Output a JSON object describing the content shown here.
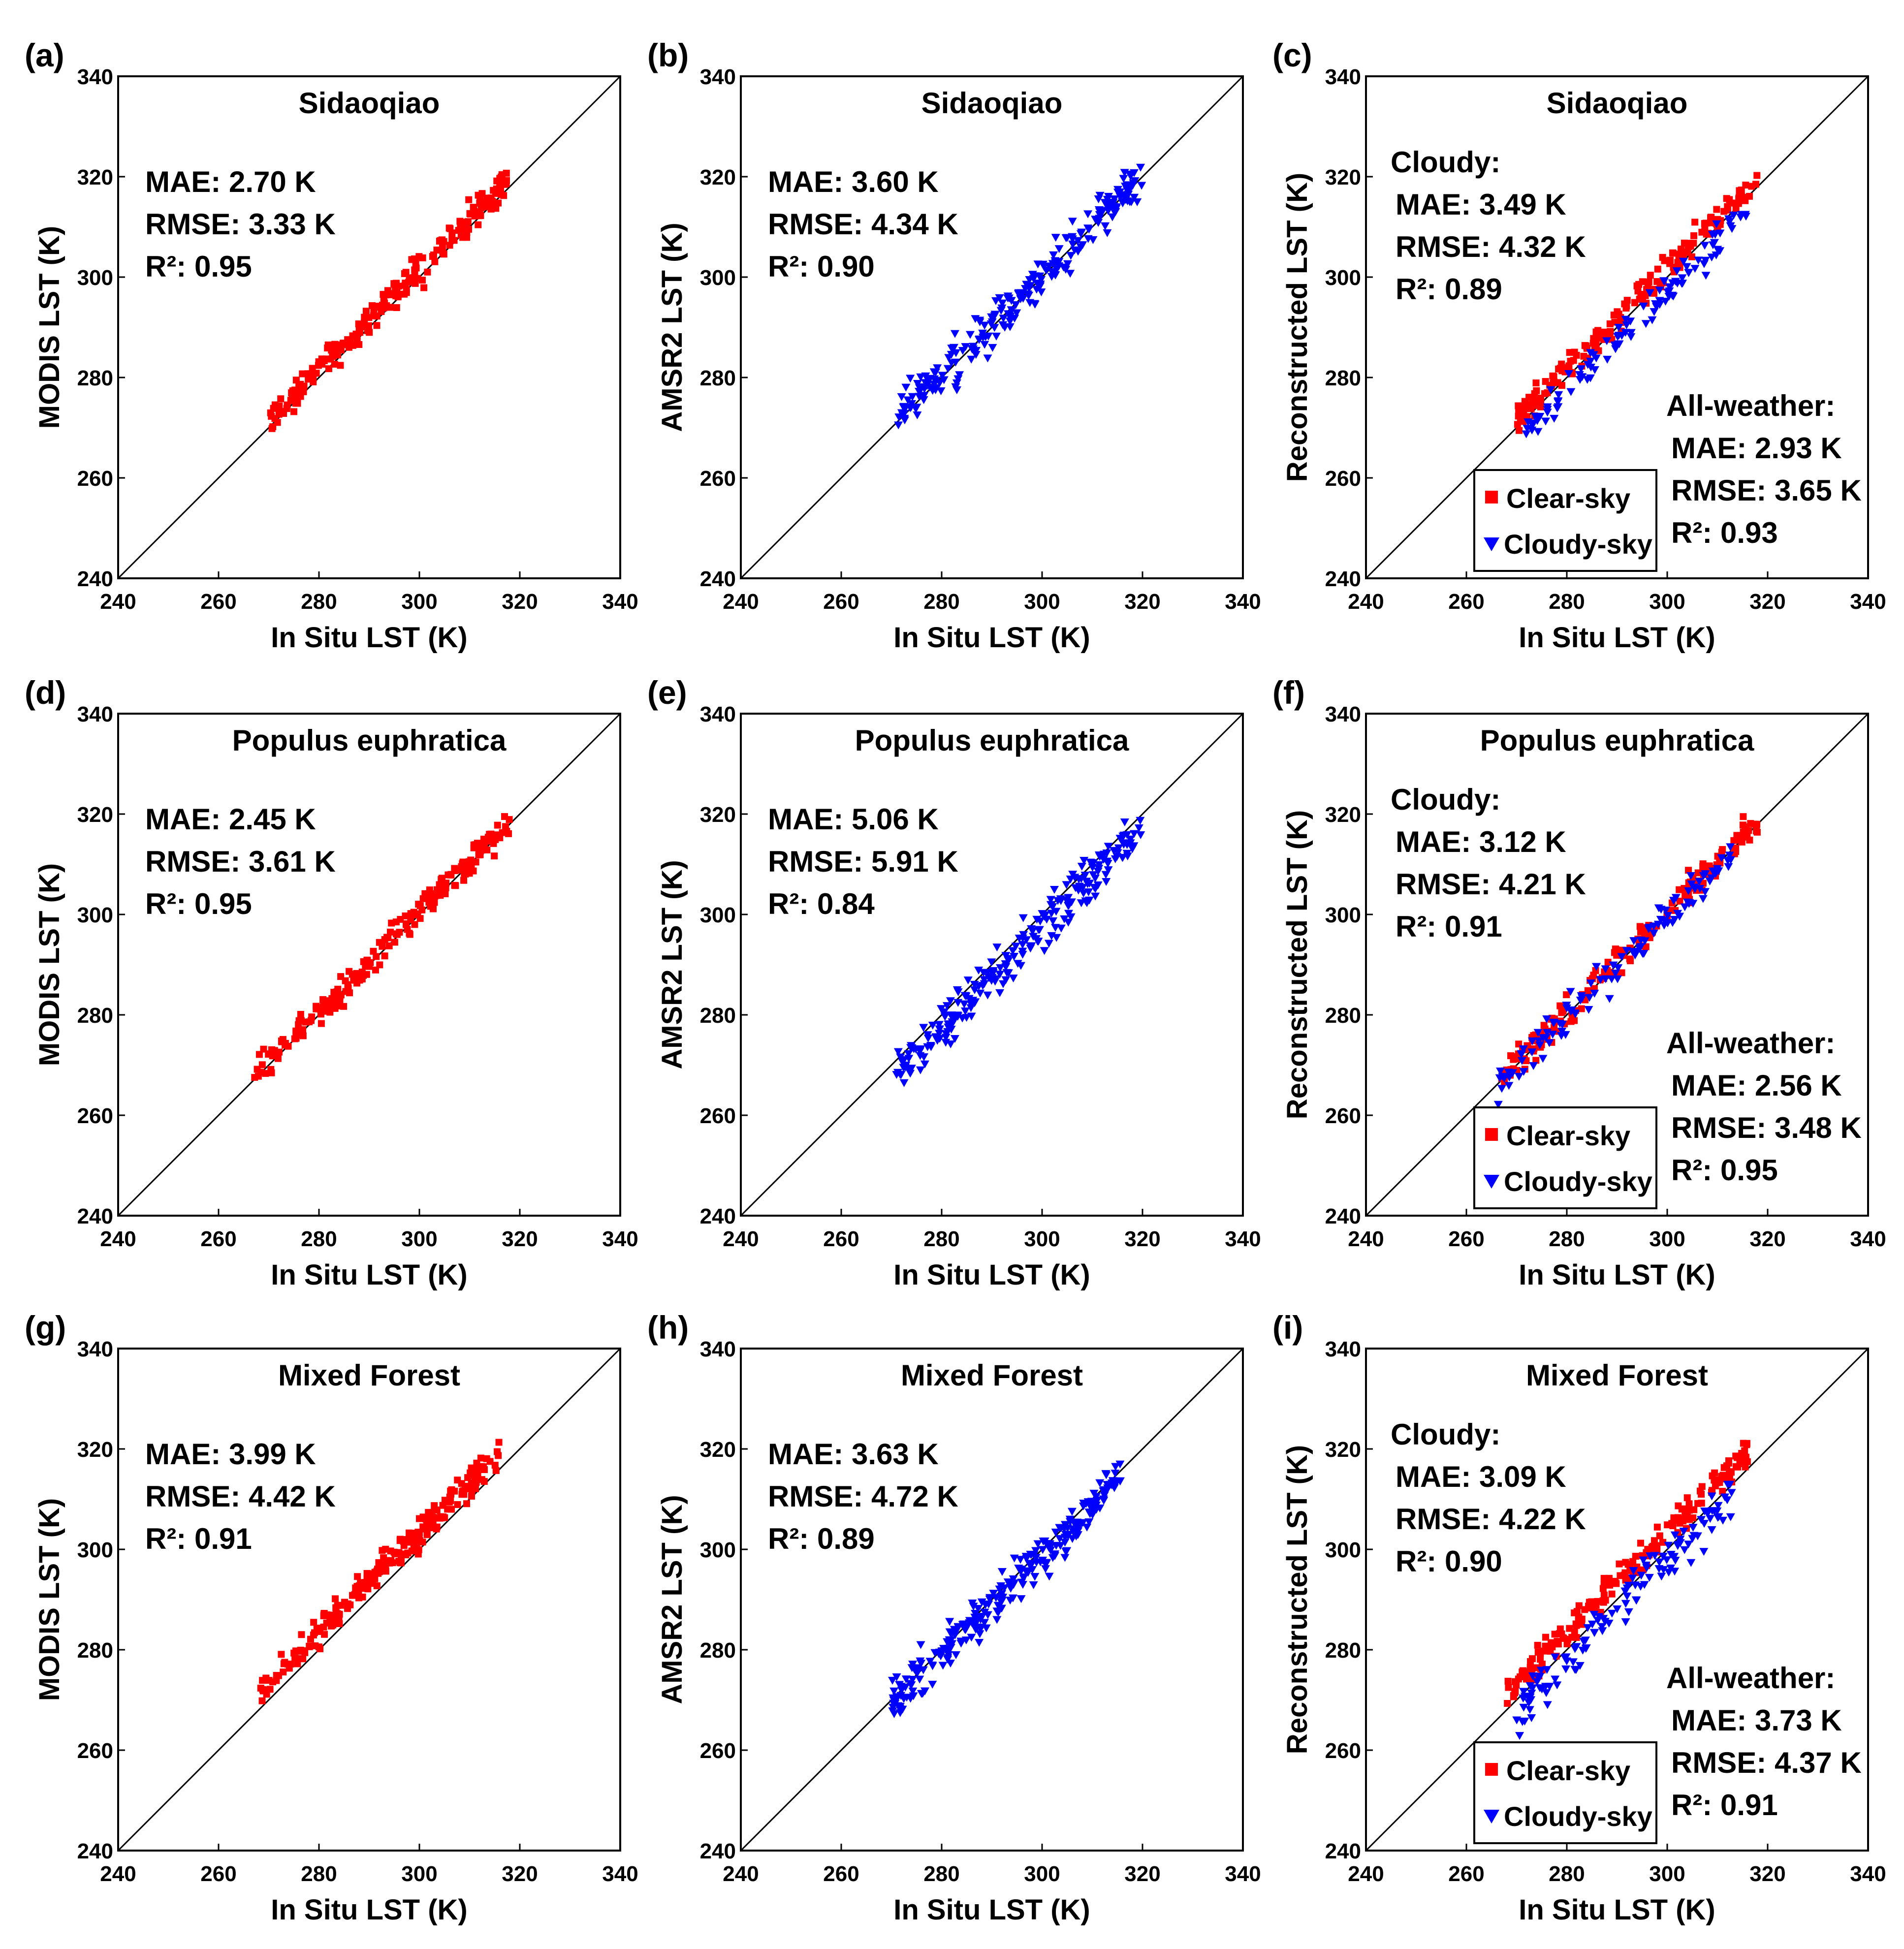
{
  "colors": {
    "clear_sky": "#ff0000",
    "cloudy_sky": "#0000ff",
    "axes": "#000000",
    "background": "#ffffff"
  },
  "chart_data": [
    {
      "panel": "(a)",
      "type": "scatter",
      "title": "Sidaoqiao",
      "xlabel": "In Situ LST (K)",
      "ylabel": "MODIS LST (K)",
      "xlim": [
        240,
        340
      ],
      "ylim": [
        240,
        340
      ],
      "ticks": [
        240,
        260,
        280,
        300,
        320,
        340
      ],
      "reference_line": "1:1",
      "series": [
        {
          "name": "Clear-sky",
          "marker": "square",
          "color": "#ff0000",
          "range": [
            270,
            318
          ],
          "bias": 1.5,
          "spread": 2.5,
          "n": 230
        }
      ],
      "stats_groups": [
        {
          "header": null,
          "lines": [
            "MAE: 2.70 K",
            "RMSE: 3.33 K",
            "R²: 0.95"
          ]
        }
      ],
      "legend": null
    },
    {
      "panel": "(b)",
      "type": "scatter",
      "title": "Sidaoqiao",
      "xlabel": "In Situ LST (K)",
      "ylabel": "AMSR2 LST (K)",
      "xlim": [
        240,
        340
      ],
      "ylim": [
        240,
        340
      ],
      "ticks": [
        240,
        260,
        280,
        300,
        320,
        340
      ],
      "reference_line": "1:1",
      "series": [
        {
          "name": "Cloudy-sky",
          "marker": "triangle-down",
          "color": "#0000ff",
          "range": [
            271,
            320
          ],
          "bias": 0.5,
          "spread": 3.5,
          "n": 250
        }
      ],
      "stats_groups": [
        {
          "header": null,
          "lines": [
            "MAE: 3.60 K",
            "RMSE: 4.34 K",
            "R²: 0.90"
          ]
        }
      ],
      "legend": null
    },
    {
      "panel": "(c)",
      "type": "scatter",
      "title": "Sidaoqiao",
      "xlabel": "In Situ LST (K)",
      "ylabel": "Reconstructed LST (K)",
      "xlim": [
        240,
        340
      ],
      "ylim": [
        240,
        340
      ],
      "ticks": [
        240,
        260,
        280,
        300,
        320,
        340
      ],
      "reference_line": "1:1",
      "series": [
        {
          "name": "Clear-sky",
          "marker": "square",
          "color": "#ff0000",
          "range": [
            270,
            318
          ],
          "bias": 1.5,
          "spread": 2.5,
          "n": 200
        },
        {
          "name": "Cloudy-sky",
          "marker": "triangle-down",
          "color": "#0000ff",
          "range": [
            271,
            316
          ],
          "bias": -2.5,
          "spread": 3.0,
          "n": 110
        }
      ],
      "stats_groups": [
        {
          "header": "Cloudy:",
          "lines": [
            "MAE: 3.49 K",
            "RMSE: 4.32 K",
            "R²: 0.89"
          ]
        },
        {
          "header": "All-weather:",
          "lines": [
            "MAE: 2.93 K",
            "RMSE: 3.65 K",
            "R²: 0.93"
          ]
        }
      ],
      "legend": [
        "Clear-sky",
        "Cloudy-sky"
      ]
    },
    {
      "panel": "(d)",
      "type": "scatter",
      "title": "Populus euphratica",
      "xlabel": "In Situ LST (K)",
      "ylabel": "MODIS LST (K)",
      "xlim": [
        240,
        340
      ],
      "ylim": [
        240,
        340
      ],
      "ticks": [
        240,
        260,
        280,
        300,
        320,
        340
      ],
      "reference_line": "1:1",
      "series": [
        {
          "name": "Clear-sky",
          "marker": "square",
          "color": "#ff0000",
          "range": [
            267,
            318
          ],
          "bias": 0.5,
          "spread": 2.5,
          "n": 230
        }
      ],
      "stats_groups": [
        {
          "header": null,
          "lines": [
            "MAE: 2.45 K",
            "RMSE: 3.61 K",
            "R²: 0.95"
          ]
        }
      ],
      "legend": null
    },
    {
      "panel": "(e)",
      "type": "scatter",
      "title": "Populus euphratica",
      "xlabel": "In Situ LST (K)",
      "ylabel": "AMSR2 LST (K)",
      "xlim": [
        240,
        340
      ],
      "ylim": [
        240,
        340
      ],
      "ticks": [
        240,
        260,
        280,
        300,
        320,
        340
      ],
      "reference_line": "1:1",
      "series": [
        {
          "name": "Cloudy-sky",
          "marker": "triangle-down",
          "color": "#0000ff",
          "range": [
            271,
            320
          ],
          "bias": -2.5,
          "spread": 3.5,
          "n": 250
        }
      ],
      "stats_groups": [
        {
          "header": null,
          "lines": [
            "MAE: 5.06 K",
            "RMSE: 5.91 K",
            "R²: 0.84"
          ]
        }
      ],
      "legend": null
    },
    {
      "panel": "(f)",
      "type": "scatter",
      "title": "Populus euphratica",
      "xlabel": "In Situ LST (K)",
      "ylabel": "Reconstructed LST (K)",
      "xlim": [
        240,
        340
      ],
      "ylim": [
        240,
        340
      ],
      "ticks": [
        240,
        260,
        280,
        300,
        320,
        340
      ],
      "reference_line": "1:1",
      "series": [
        {
          "name": "Clear-sky",
          "marker": "square",
          "color": "#ff0000",
          "range": [
            267,
            318
          ],
          "bias": 0.5,
          "spread": 2.5,
          "n": 190
        },
        {
          "name": "Cloudy-sky",
          "marker": "triangle-down",
          "color": "#0000ff",
          "range": [
            266,
            313
          ],
          "bias": -0.5,
          "spread": 3.0,
          "n": 120
        }
      ],
      "stats_groups": [
        {
          "header": "Cloudy:",
          "lines": [
            "MAE: 3.12 K",
            "RMSE: 4.21 K",
            "R²: 0.91"
          ]
        },
        {
          "header": "All-weather:",
          "lines": [
            "MAE: 2.56 K",
            "RMSE: 3.48 K",
            "R²: 0.95"
          ]
        }
      ],
      "legend": [
        "Clear-sky",
        "Cloudy-sky"
      ]
    },
    {
      "panel": "(g)",
      "type": "scatter",
      "title": "Mixed Forest",
      "xlabel": "In Situ LST (K)",
      "ylabel": "MODIS LST (K)",
      "xlim": [
        240,
        340
      ],
      "ylim": [
        240,
        340
      ],
      "ticks": [
        240,
        260,
        280,
        300,
        320,
        340
      ],
      "reference_line": "1:1",
      "series": [
        {
          "name": "Clear-sky",
          "marker": "square",
          "color": "#ff0000",
          "range": [
            268,
            316
          ],
          "bias": 3.5,
          "spread": 2.5,
          "n": 240
        }
      ],
      "stats_groups": [
        {
          "header": null,
          "lines": [
            "MAE: 3.99 K",
            "RMSE: 4.42 K",
            "R²: 0.91"
          ]
        }
      ],
      "legend": null
    },
    {
      "panel": "(h)",
      "type": "scatter",
      "title": "Mixed Forest",
      "xlabel": "In Situ LST (K)",
      "ylabel": "AMSR2 LST (K)",
      "xlim": [
        240,
        340
      ],
      "ylim": [
        240,
        340
      ],
      "ticks": [
        240,
        260,
        280,
        300,
        320,
        340
      ],
      "reference_line": "1:1",
      "series": [
        {
          "name": "Cloudy-sky",
          "marker": "triangle-down",
          "color": "#0000ff",
          "range": [
            270,
            316
          ],
          "bias": -1.0,
          "spread": 3.5,
          "n": 270
        }
      ],
      "stats_groups": [
        {
          "header": null,
          "lines": [
            "MAE: 3.63 K",
            "RMSE: 4.72 K",
            "R²: 0.89"
          ]
        }
      ],
      "legend": null
    },
    {
      "panel": "(i)",
      "type": "scatter",
      "title": "Mixed Forest",
      "xlabel": "In Situ LST (K)",
      "ylabel": "Reconstructed LST (K)",
      "xlim": [
        240,
        340
      ],
      "ylim": [
        240,
        340
      ],
      "ticks": [
        240,
        260,
        280,
        300,
        320,
        340
      ],
      "reference_line": "1:1",
      "series": [
        {
          "name": "Clear-sky",
          "marker": "square",
          "color": "#ff0000",
          "range": [
            268,
            316
          ],
          "bias": 3.5,
          "spread": 2.5,
          "n": 200
        },
        {
          "name": "Cloudy-sky",
          "marker": "triangle-down",
          "color": "#0000ff",
          "range": [
            270,
            313
          ],
          "bias": -2.0,
          "spread": 3.5,
          "n": 130
        }
      ],
      "stats_groups": [
        {
          "header": "Cloudy:",
          "lines": [
            "MAE: 3.09 K",
            "RMSE: 4.22 K",
            "R²: 0.90"
          ]
        },
        {
          "header": "All-weather:",
          "lines": [
            "MAE: 3.73 K",
            "RMSE: 4.37 K",
            "R²: 0.91"
          ]
        }
      ],
      "legend": [
        "Clear-sky",
        "Cloudy-sky"
      ]
    }
  ]
}
